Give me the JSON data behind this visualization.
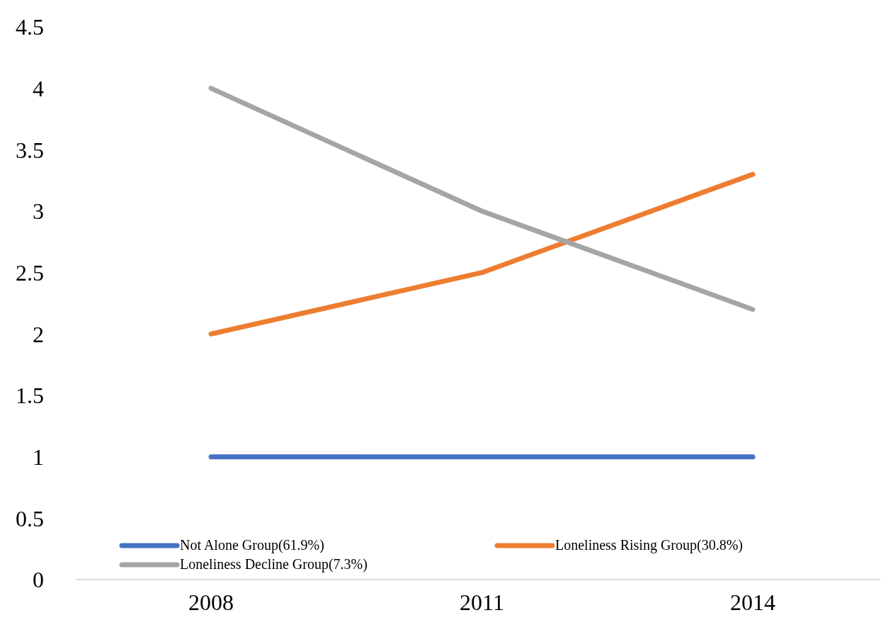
{
  "chart_data": {
    "type": "line",
    "categories": [
      "2008",
      "2011",
      "2014"
    ],
    "series": [
      {
        "name": "Not Alone Group(61.9%)",
        "color": "#4472c4",
        "values": [
          1,
          1,
          1
        ]
      },
      {
        "name": "Loneliness Rising Group(30.8%)",
        "color": "#ed7d31",
        "values": [
          2,
          2.5,
          3.3
        ]
      },
      {
        "name": "Loneliness Decline Group(7.3%)",
        "color": "#a5a5a5",
        "values": [
          4,
          3,
          2.2
        ]
      }
    ],
    "ylim": [
      0,
      4.5
    ],
    "yticks": [
      0,
      0.5,
      1,
      1.5,
      2,
      2.5,
      3,
      3.5,
      4,
      4.5
    ],
    "grid": false,
    "legend": "bottom",
    "marker": "none",
    "line_style": "solid"
  }
}
